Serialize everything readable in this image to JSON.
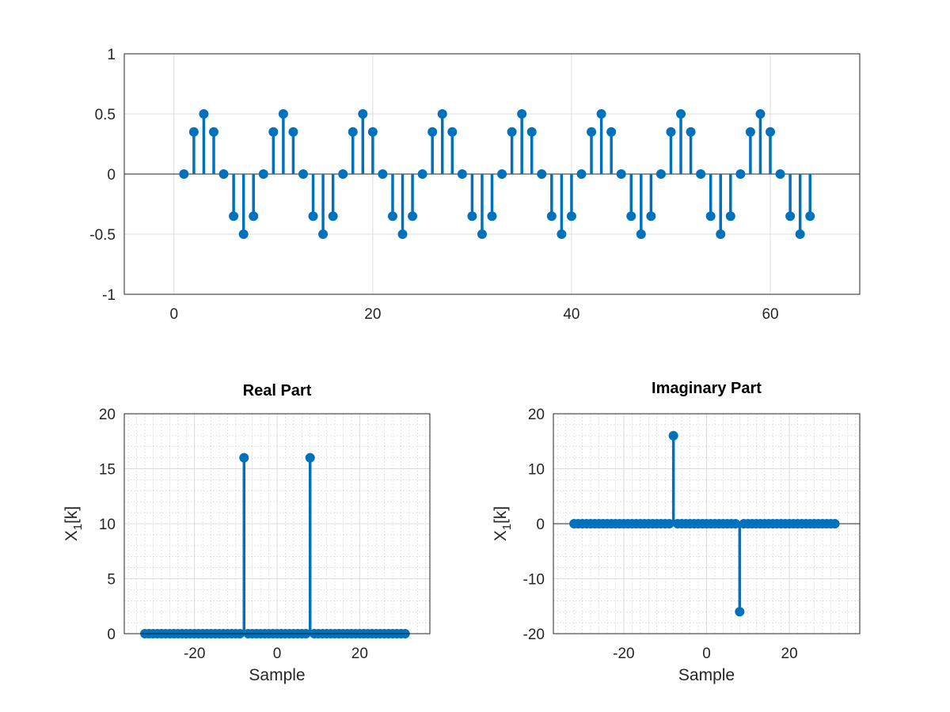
{
  "colors": {
    "series": "#0072bd",
    "axis": "#262626",
    "grid": "#dcdcdc"
  },
  "chart_data": [
    {
      "id": "top",
      "type": "stem",
      "title": "",
      "xlabel": "",
      "ylabel": "",
      "xlim": [
        -5,
        69
      ],
      "ylim": [
        -1,
        1
      ],
      "xticks": [
        "0",
        "20",
        "40",
        "60"
      ],
      "yticks": [
        "1",
        "0.5",
        "0",
        "-0.5",
        "-1"
      ],
      "grid": "major",
      "x": [
        1,
        2,
        3,
        4,
        5,
        6,
        7,
        8,
        9,
        10,
        11,
        12,
        13,
        14,
        15,
        16,
        17,
        18,
        19,
        20,
        21,
        22,
        23,
        24,
        25,
        26,
        27,
        28,
        29,
        30,
        31,
        32,
        33,
        34,
        35,
        36,
        37,
        38,
        39,
        40,
        41,
        42,
        43,
        44,
        45,
        46,
        47,
        48,
        49,
        50,
        51,
        52,
        53,
        54,
        55,
        56,
        57,
        58,
        59,
        60,
        61,
        62,
        63,
        64
      ],
      "y": [
        0,
        0.35,
        0.5,
        0.35,
        0,
        -0.35,
        -0.5,
        -0.35,
        0,
        0.35,
        0.5,
        0.35,
        0,
        -0.35,
        -0.5,
        -0.35,
        0,
        0.35,
        0.5,
        0.35,
        0,
        -0.35,
        -0.5,
        -0.35,
        0,
        0.35,
        0.5,
        0.35,
        0,
        -0.35,
        -0.5,
        -0.35,
        0,
        0.35,
        0.5,
        0.35,
        0,
        -0.35,
        -0.5,
        -0.35,
        0,
        0.35,
        0.5,
        0.35,
        0,
        -0.35,
        -0.5,
        -0.35,
        0,
        0.35,
        0.5,
        0.35,
        0,
        -0.35,
        -0.5,
        -0.35,
        0,
        0.35,
        0.5,
        0.35,
        0,
        -0.35,
        -0.5,
        -0.35
      ]
    },
    {
      "id": "real",
      "type": "stem",
      "title": "Real Part",
      "xlabel": "Sample",
      "ylabel": "X",
      "ylabel_sub": "1",
      "ylabel_tail": "[k]",
      "xlim": [
        -37,
        37
      ],
      "ylim": [
        0,
        20
      ],
      "xticks": [
        "-20",
        "0",
        "20"
      ],
      "yticks": [
        "20",
        "15",
        "10",
        "5",
        "0"
      ],
      "grid": "major+minor",
      "x_range": [
        -32,
        31
      ],
      "spikes": [
        {
          "x": -8,
          "y": 16
        },
        {
          "x": 8,
          "y": 16
        }
      ]
    },
    {
      "id": "imag",
      "type": "stem",
      "title": "Imaginary Part",
      "xlabel": "Sample",
      "ylabel": "X",
      "ylabel_sub": "1",
      "ylabel_tail": "[k]",
      "xlim": [
        -37,
        37
      ],
      "ylim": [
        -20,
        20
      ],
      "xticks": [
        "-20",
        "0",
        "20"
      ],
      "yticks": [
        "20",
        "10",
        "0",
        "-10",
        "-20"
      ],
      "grid": "major+minor",
      "x_range": [
        -32,
        31
      ],
      "spikes": [
        {
          "x": -8,
          "y": 16
        },
        {
          "x": 8,
          "y": -16
        }
      ]
    }
  ]
}
